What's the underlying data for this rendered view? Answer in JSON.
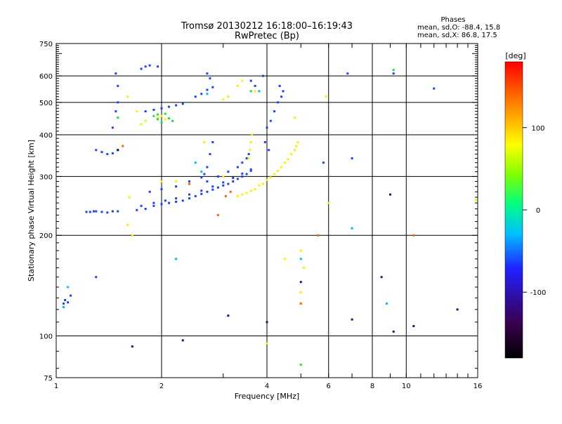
{
  "chart_data": {
    "type": "scatter",
    "title": "Tromsø 20130212 16:18:00–16:19:43",
    "subtitle": "RwPretec (Bp)",
    "xlabel": "Frequency [MHz]",
    "ylabel": "Stationary phase Virtual Height [km]",
    "x_scale": "log",
    "y_scale": "log",
    "xlim": [
      1,
      16
    ],
    "ylim": [
      75,
      750
    ],
    "xticks": [
      1,
      2,
      4,
      6,
      8,
      10,
      16
    ],
    "yticks": [
      75,
      100,
      200,
      300,
      400,
      500,
      600,
      750
    ],
    "grid": true,
    "phase_stats": {
      "title": "Phases",
      "line1": "mean, sd,O: -88.4, 15.8",
      "line2": "mean, sd,X:  86.8, 17.5"
    },
    "colorbar": {
      "label": "[deg]",
      "range": [
        -180,
        180
      ],
      "ticks": [
        -100,
        0,
        100
      ],
      "colors": [
        "#000000",
        "#3a0050",
        "#2020ff",
        "#00c0ff",
        "#00ff80",
        "#80ff00",
        "#ffff00",
        "#ff8000",
        "#ff0000"
      ]
    },
    "series": [
      {
        "color": "#1e40ff",
        "values": [
          [
            1.05,
            125
          ],
          [
            1.08,
            126
          ],
          [
            1.1,
            132
          ],
          [
            1.06,
            128
          ],
          [
            1.22,
            235
          ],
          [
            1.25,
            235
          ],
          [
            1.28,
            236
          ],
          [
            1.3,
            236
          ],
          [
            1.35,
            235
          ],
          [
            1.4,
            234
          ],
          [
            1.45,
            236
          ],
          [
            1.5,
            236
          ],
          [
            1.3,
            360
          ],
          [
            1.35,
            355
          ],
          [
            1.4,
            350
          ],
          [
            1.45,
            352
          ],
          [
            1.5,
            360
          ],
          [
            1.45,
            420
          ],
          [
            1.48,
            470
          ],
          [
            1.5,
            500
          ],
          [
            1.5,
            560
          ],
          [
            1.48,
            610
          ],
          [
            1.3,
            150
          ],
          [
            1.7,
            238
          ],
          [
            1.8,
            240
          ],
          [
            1.9,
            245
          ],
          [
            2.0,
            248
          ],
          [
            2.1,
            250
          ],
          [
            2.2,
            252
          ],
          [
            2.3,
            254
          ],
          [
            2.4,
            258
          ],
          [
            2.5,
            262
          ],
          [
            2.6,
            266
          ],
          [
            2.7,
            270
          ],
          [
            2.8,
            274
          ],
          [
            2.9,
            278
          ],
          [
            3.0,
            282
          ],
          [
            3.1,
            285
          ],
          [
            3.2,
            290
          ],
          [
            3.3,
            295
          ],
          [
            3.4,
            300
          ],
          [
            3.5,
            305
          ],
          [
            3.6,
            312
          ],
          [
            1.75,
            245
          ],
          [
            1.9,
            250
          ],
          [
            2.05,
            254
          ],
          [
            2.2,
            258
          ],
          [
            2.4,
            265
          ],
          [
            2.6,
            272
          ],
          [
            2.8,
            280
          ],
          [
            3.0,
            288
          ],
          [
            3.2,
            297
          ],
          [
            3.4,
            306
          ],
          [
            3.6,
            315
          ],
          [
            1.8,
            470
          ],
          [
            1.9,
            475
          ],
          [
            2.0,
            480
          ],
          [
            2.1,
            485
          ],
          [
            2.2,
            490
          ],
          [
            2.3,
            495
          ],
          [
            2.5,
            520
          ],
          [
            2.6,
            530
          ],
          [
            2.7,
            545
          ],
          [
            2.8,
            555
          ],
          [
            1.75,
            630
          ],
          [
            1.8,
            640
          ],
          [
            1.85,
            645
          ],
          [
            1.95,
            640
          ],
          [
            2.7,
            610
          ],
          [
            2.75,
            590
          ],
          [
            4.0,
            420
          ],
          [
            4.1,
            440
          ],
          [
            4.2,
            470
          ],
          [
            4.3,
            500
          ],
          [
            4.4,
            520
          ],
          [
            4.45,
            540
          ],
          [
            4.35,
            560
          ],
          [
            3.95,
            380
          ],
          [
            4.05,
            360
          ],
          [
            3.3,
            320
          ],
          [
            3.4,
            330
          ],
          [
            3.5,
            340
          ],
          [
            3.55,
            350
          ],
          [
            3.1,
            310
          ],
          [
            2.9,
            300
          ],
          [
            2.7,
            320
          ],
          [
            2.75,
            350
          ],
          [
            2.8,
            380
          ],
          [
            3.9,
            600
          ],
          [
            3.6,
            580
          ],
          [
            3.7,
            560
          ],
          [
            1.85,
            270
          ],
          [
            2.0,
            275
          ],
          [
            2.2,
            280
          ],
          [
            2.4,
            290
          ],
          [
            2.6,
            298
          ],
          [
            2.65,
            305
          ],
          [
            2.7,
            290
          ],
          [
            5.8,
            330
          ],
          [
            7.0,
            340
          ],
          [
            6.8,
            610
          ],
          [
            12.0,
            550
          ],
          [
            9.2,
            610
          ]
        ]
      },
      {
        "color": "#ffee00",
        "values": [
          [
            3.3,
            262
          ],
          [
            3.5,
            268
          ],
          [
            3.7,
            275
          ],
          [
            3.9,
            285
          ],
          [
            4.1,
            298
          ],
          [
            4.3,
            312
          ],
          [
            4.5,
            330
          ],
          [
            4.7,
            350
          ],
          [
            4.85,
            370
          ],
          [
            4.9,
            380
          ],
          [
            3.4,
            265
          ],
          [
            3.6,
            272
          ],
          [
            3.8,
            282
          ],
          [
            4.0,
            293
          ],
          [
            4.2,
            305
          ],
          [
            4.4,
            320
          ],
          [
            4.6,
            338
          ],
          [
            4.8,
            360
          ],
          [
            3.55,
            340
          ],
          [
            3.58,
            360
          ],
          [
            3.6,
            380
          ],
          [
            3.62,
            400
          ],
          [
            3.7,
            540
          ],
          [
            3.3,
            560
          ],
          [
            3.4,
            580
          ],
          [
            3.1,
            520
          ],
          [
            3.0,
            510
          ],
          [
            1.75,
            430
          ],
          [
            1.8,
            440
          ],
          [
            1.95,
            450
          ],
          [
            2.0,
            455
          ],
          [
            2.05,
            445
          ],
          [
            1.7,
            470
          ],
          [
            1.6,
            520
          ],
          [
            1.62,
            260
          ],
          [
            1.65,
            200
          ],
          [
            1.6,
            215
          ],
          [
            2.65,
            380
          ],
          [
            3.0,
            300
          ],
          [
            4.5,
            170
          ],
          [
            5.0,
            180
          ],
          [
            5.1,
            160
          ],
          [
            5.0,
            135
          ],
          [
            5.9,
            520
          ],
          [
            4.8,
            450
          ],
          [
            4.0,
            95
          ],
          [
            2.0,
            290
          ],
          [
            2.2,
            290
          ],
          [
            6.0,
            250
          ],
          [
            15.8,
            255
          ]
        ]
      },
      {
        "color": "#20e040",
        "values": [
          [
            1.95,
            460
          ],
          [
            2.05,
            462
          ],
          [
            2.1,
            448
          ],
          [
            2.15,
            440
          ],
          [
            2.0,
            435
          ],
          [
            1.95,
            445
          ],
          [
            1.9,
            455
          ],
          [
            1.5,
            450
          ],
          [
            5.0,
            82
          ],
          [
            9.2,
            625
          ],
          [
            3.6,
            540
          ]
        ]
      },
      {
        "color": "#00b8ff",
        "values": [
          [
            1.05,
            122
          ],
          [
            1.08,
            140
          ],
          [
            2.5,
            330
          ],
          [
            2.6,
            310
          ],
          [
            3.8,
            540
          ],
          [
            5.0,
            170
          ],
          [
            7.0,
            210
          ],
          [
            8.8,
            125
          ],
          [
            2.2,
            170
          ],
          [
            2.7,
            530
          ]
        ]
      },
      {
        "color": "#ff6000",
        "values": [
          [
            3.05,
            262
          ],
          [
            3.15,
            270
          ],
          [
            2.4,
            285
          ],
          [
            5.0,
            125
          ],
          [
            5.6,
            200
          ],
          [
            10.5,
            200
          ],
          [
            1.55,
            370
          ],
          [
            2.9,
            230
          ]
        ]
      },
      {
        "color": "#2a1080",
        "values": [
          [
            1.65,
            93
          ],
          [
            2.3,
            97
          ],
          [
            4.0,
            110
          ],
          [
            5.0,
            145
          ],
          [
            7.0,
            112
          ],
          [
            9.2,
            103
          ],
          [
            10.5,
            107
          ],
          [
            14.0,
            120
          ],
          [
            3.1,
            115
          ],
          [
            8.5,
            150
          ],
          [
            9.0,
            265
          ],
          [
            1.5,
            360
          ]
        ]
      }
    ]
  }
}
